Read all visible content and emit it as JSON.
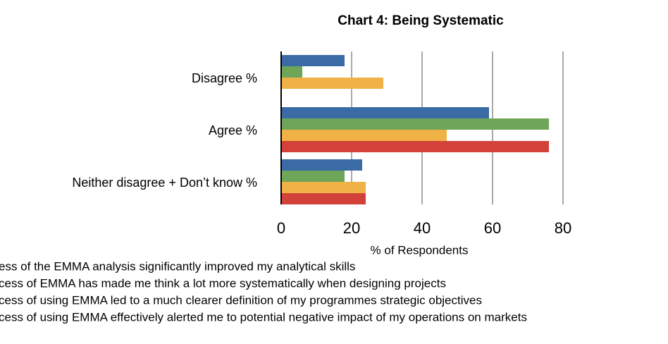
{
  "chart_data": {
    "type": "hbar",
    "title": "Chart 4: Being Systematic",
    "categories": [
      "Disagree  %",
      "Agree %",
      "Neither disagree + Don’t know %"
    ],
    "series": [
      {
        "name": "ess of the EMMA analysis significantly improved my analytical skills",
        "color": "#3b6ba5",
        "values": [
          18,
          59,
          23
        ]
      },
      {
        "name": "cess of EMMA has made me think a lot more systematically when designing projects",
        "color": "#6fa558",
        "values": [
          6,
          76,
          18
        ]
      },
      {
        "name": "cess of using EMMA led to a much clearer definition of my programmes strategic objectives",
        "color": "#f0b247",
        "values": [
          29,
          47,
          24
        ]
      },
      {
        "name": "cess of using EMMA effectively alerted me to potential negative impact of my operations on markets",
        "color": "#d2413a",
        "values": [
          0,
          76,
          24
        ]
      }
    ],
    "xlabel": "% of Respondents",
    "xlim": [
      0,
      80
    ],
    "xticks": [
      0,
      20,
      40,
      60,
      80
    ],
    "grid": true
  }
}
